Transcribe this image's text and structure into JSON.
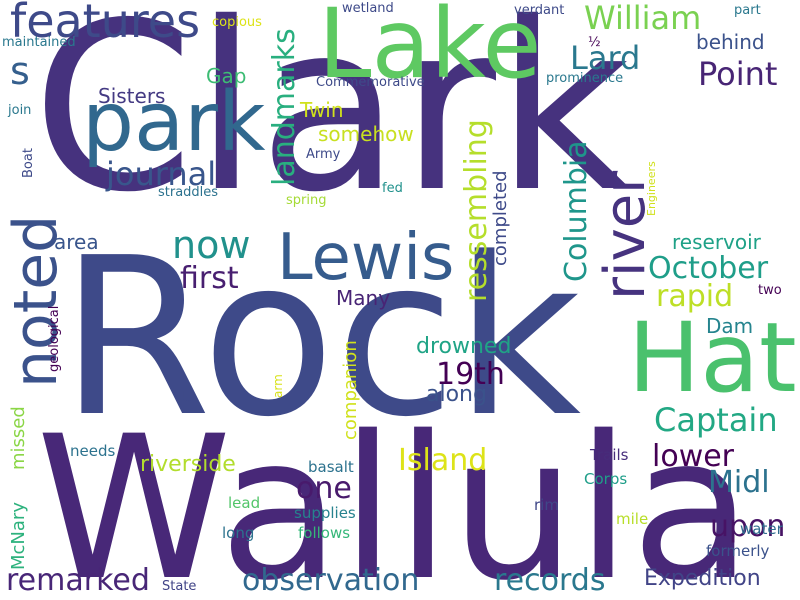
{
  "words": [
    {
      "text": "Clark",
      "color": "#46327e",
      "orient": "h"
    },
    {
      "text": "Rock",
      "color": "#3e4a89",
      "orient": "h"
    },
    {
      "text": "Wallula",
      "color": "#482878",
      "orient": "h"
    },
    {
      "text": "Lake",
      "color": "#5ec962",
      "orient": "h"
    },
    {
      "text": "Hat",
      "color": "#4ac16d",
      "orient": "h"
    },
    {
      "text": "park",
      "color": "#31688e",
      "orient": "h"
    },
    {
      "text": "Lewis",
      "color": "#365c8d",
      "orient": "h"
    },
    {
      "text": "river",
      "color": "#46337f",
      "orient": "v"
    },
    {
      "text": "noted",
      "color": "#3b528b",
      "orient": "v"
    },
    {
      "text": "features",
      "color": "#3e4a89",
      "orient": "h"
    },
    {
      "text": "s",
      "color": "#355f8d",
      "orient": "h"
    },
    {
      "text": "William",
      "color": "#7ad151",
      "orient": "h"
    },
    {
      "text": "Point",
      "color": "#482575",
      "orient": "h"
    },
    {
      "text": "Lard",
      "color": "#2a788e",
      "orient": "h"
    },
    {
      "text": "journal",
      "color": "#39568c",
      "orient": "h"
    },
    {
      "text": "now",
      "color": "#21918c",
      "orient": "h"
    },
    {
      "text": "first",
      "color": "#481f70",
      "orient": "h"
    },
    {
      "text": "October",
      "color": "#1f9e89",
      "orient": "h"
    },
    {
      "text": "rapid",
      "color": "#bddf26",
      "orient": "h"
    },
    {
      "text": "Columbia",
      "color": "#1f968b",
      "orient": "v"
    },
    {
      "text": "ressembling",
      "color": "#b5de2b",
      "orient": "v"
    },
    {
      "text": "landmarks",
      "color": "#29af7f",
      "orient": "v"
    },
    {
      "text": "Captain",
      "color": "#22a884",
      "orient": "h"
    },
    {
      "text": "Island",
      "color": "#dde318",
      "orient": "h"
    },
    {
      "text": "19th",
      "color": "#440154",
      "orient": "h"
    },
    {
      "text": "lower",
      "color": "#440154",
      "orient": "h"
    },
    {
      "text": "Midl",
      "color": "#2c728e",
      "orient": "h"
    },
    {
      "text": "upon",
      "color": "#471365",
      "orient": "h"
    },
    {
      "text": "one",
      "color": "#481a6c",
      "orient": "h"
    },
    {
      "text": "observation",
      "color": "#31688e",
      "orient": "h"
    },
    {
      "text": "records",
      "color": "#2a788e",
      "orient": "h"
    },
    {
      "text": "remarked",
      "color": "#482677",
      "orient": "h"
    },
    {
      "text": "Expedition",
      "color": "#414487",
      "orient": "h"
    },
    {
      "text": "riverside",
      "color": "#b2dd2d",
      "orient": "h"
    },
    {
      "text": "along",
      "color": "#3b528b",
      "orient": "h"
    },
    {
      "text": "drowned",
      "color": "#20a486",
      "orient": "h"
    },
    {
      "text": "Many",
      "color": "#482475",
      "orient": "h"
    },
    {
      "text": "Dam",
      "color": "#25848e",
      "orient": "h"
    },
    {
      "text": "reservoir",
      "color": "#1fa187",
      "orient": "h"
    },
    {
      "text": "Twin",
      "color": "#d0e11c",
      "orient": "h"
    },
    {
      "text": "somehow",
      "color": "#c8e020",
      "orient": "h"
    },
    {
      "text": "Sisters",
      "color": "#443a83",
      "orient": "h"
    },
    {
      "text": "Gap",
      "color": "#3dbc74",
      "orient": "h"
    },
    {
      "text": "behind",
      "color": "#3b528b",
      "orient": "h"
    },
    {
      "text": "area",
      "color": "#39558c",
      "orient": "h"
    },
    {
      "text": "completed",
      "color": "#3e4a89",
      "orient": "v"
    },
    {
      "text": "companion",
      "color": "#d0e11c",
      "orient": "v"
    },
    {
      "text": "McNary",
      "color": "#2db27d",
      "orient": "v"
    },
    {
      "text": "missed",
      "color": "#8bd646",
      "orient": "v"
    },
    {
      "text": "Trails",
      "color": "#472d7b",
      "orient": "h"
    },
    {
      "text": "Corps",
      "color": "#1f9e89",
      "orient": "h"
    },
    {
      "text": "water",
      "color": "#2f6c8e",
      "orient": "h"
    },
    {
      "text": "formerly",
      "color": "#3b528b",
      "orient": "h"
    },
    {
      "text": "mile",
      "color": "#b8de29",
      "orient": "h"
    },
    {
      "text": "rim",
      "color": "#3f4788",
      "orient": "h"
    },
    {
      "text": "basalt",
      "color": "#2c728e",
      "orient": "h"
    },
    {
      "text": "supplies",
      "color": "#26828e",
      "orient": "h"
    },
    {
      "text": "follows",
      "color": "#35b779",
      "orient": "h"
    },
    {
      "text": "long",
      "color": "#2c728e",
      "orient": "h"
    },
    {
      "text": "lead",
      "color": "#52c569",
      "orient": "h"
    },
    {
      "text": "needs",
      "color": "#2c728e",
      "orient": "h"
    },
    {
      "text": "State",
      "color": "#414487",
      "orient": "h"
    },
    {
      "text": "U",
      "color": "#3e4a89",
      "orient": "h"
    },
    {
      "text": "arm",
      "color": "#d8e219",
      "orient": "v"
    },
    {
      "text": "geological",
      "color": "#440154",
      "orient": "v"
    },
    {
      "text": "two",
      "color": "#440154",
      "orient": "h"
    },
    {
      "text": "Army",
      "color": "#3e4a89",
      "orient": "h"
    },
    {
      "text": "fed",
      "color": "#21918c",
      "orient": "h"
    },
    {
      "text": "spring",
      "color": "#a5db36",
      "orient": "h"
    },
    {
      "text": "straddles",
      "color": "#2c728e",
      "orient": "h"
    },
    {
      "text": "Boat",
      "color": "#3e4a89",
      "orient": "v"
    },
    {
      "text": "join",
      "color": "#2a788e",
      "orient": "h"
    },
    {
      "text": "maintained",
      "color": "#2a788e",
      "orient": "h"
    },
    {
      "text": "copious",
      "color": "#dde318",
      "orient": "h"
    },
    {
      "text": "wetland",
      "color": "#3e4a89",
      "orient": "h"
    },
    {
      "text": "verdant",
      "color": "#3e4a89",
      "orient": "h"
    },
    {
      "text": "part",
      "color": "#2a788e",
      "orient": "h"
    },
    {
      "text": "½",
      "color": "#440154",
      "orient": "h"
    },
    {
      "text": "Commemorative",
      "color": "#3e4a89",
      "orient": "h"
    },
    {
      "text": "prominence",
      "color": "#2a788e",
      "orient": "h"
    },
    {
      "text": "Engineers",
      "color": "#d0e11c",
      "orient": "v"
    }
  ]
}
